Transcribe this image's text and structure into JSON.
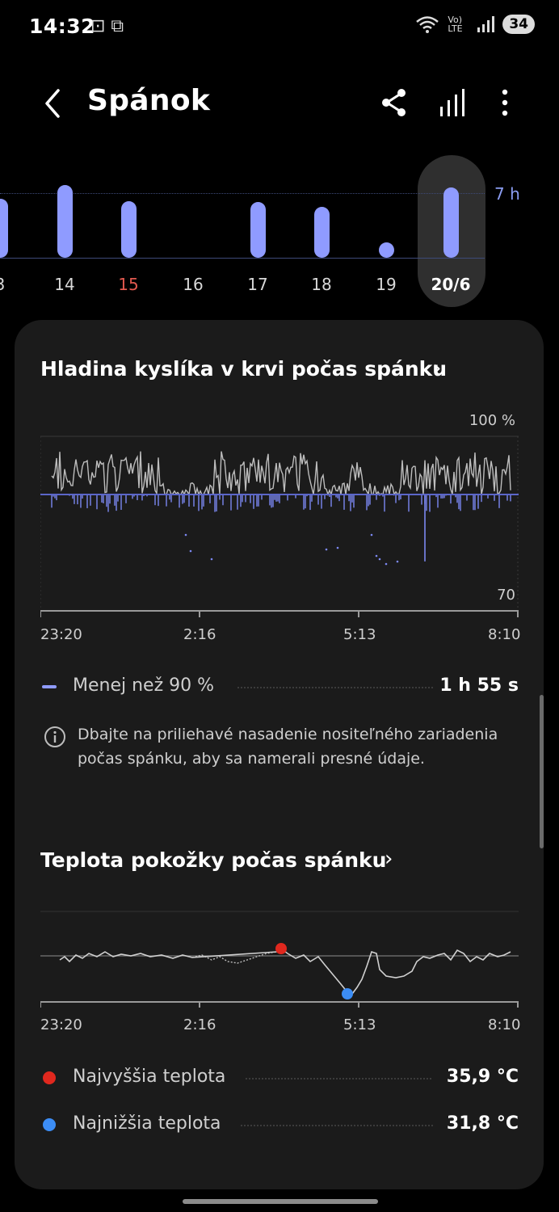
{
  "status": {
    "time": "14:32",
    "left_icons": "⊡ ⧉",
    "network": "Vo) LTE",
    "battery": "34"
  },
  "header": {
    "title": "Spánok"
  },
  "day_chart": {
    "max_label": "7 h",
    "days": [
      {
        "label": "3",
        "hours": 5.2
      },
      {
        "label": "14",
        "hours": 6.4
      },
      {
        "label": "15",
        "hours": 5.0,
        "highlight": "#e2594f"
      },
      {
        "label": "16",
        "hours": 0
      },
      {
        "label": "17",
        "hours": 4.9
      },
      {
        "label": "18",
        "hours": 4.5
      },
      {
        "label": "19",
        "hours": 1.0
      },
      {
        "label": "20/6",
        "hours": 6.2,
        "selected": true
      }
    ]
  },
  "oxygen": {
    "title": "Hladina kyslíka v krvi počas spánku",
    "y_top": "100 %",
    "y_bottom": "70",
    "x_labels": [
      "23:20",
      "2:16",
      "5:13",
      "8:10"
    ],
    "threshold_percent": 90,
    "legend_label": "Menej než 90 %",
    "legend_value": "1 h 55 s",
    "info": "Dbajte na priliehavé nasadenie nositeľného zariadenia počas spánku, aby sa namerali presné údaje."
  },
  "skin_temp": {
    "title": "Teplota pokožky počas spánku",
    "x_labels": [
      "23:20",
      "2:16",
      "5:13",
      "8:10"
    ],
    "high_label": "Najvyššia teplota",
    "high_value": "35,9 °C",
    "high_color": "#e0281e",
    "low_label": "Najnižšia teplota",
    "low_value": "31,8 °C",
    "low_color": "#3c8df5"
  },
  "colors": {
    "accent": "#8f9bff",
    "oxygen_high": "#bdbdbd",
    "oxygen_low": "#7c88f2"
  }
}
